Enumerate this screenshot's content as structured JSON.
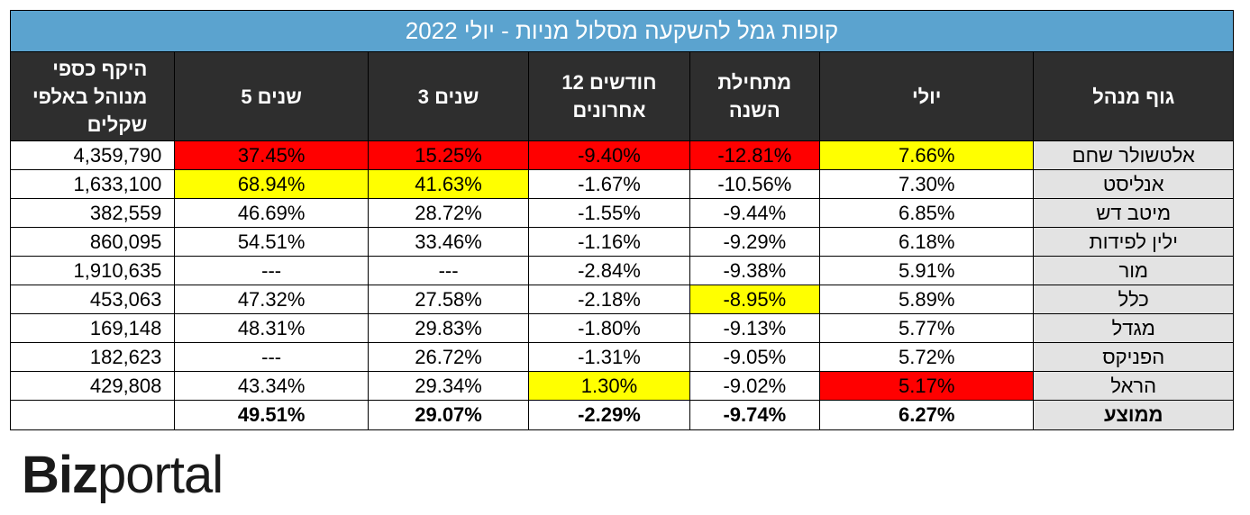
{
  "title": "קופות גמל להשקעה מסלול מניות - יולי 2022",
  "headers": {
    "manager": "גוף מנהל",
    "july": "יולי",
    "ytd": "מתחילת השנה",
    "m12": "12 חודשים אחרונים",
    "y3": "3 שנים",
    "y5": "5 שנים",
    "volume": "היקף כספי מנוהל באלפי שקלים"
  },
  "rows": [
    {
      "manager": "אלטשולר שחם",
      "july": "7.66%",
      "ytd": "-12.81%",
      "m12": "-9.40%",
      "y3": "15.25%",
      "y5": "37.45%",
      "volume": "4,359,790"
    },
    {
      "manager": "אנליסט",
      "july": "7.30%",
      "ytd": "-10.56%",
      "m12": "-1.67%",
      "y3": "41.63%",
      "y5": "68.94%",
      "volume": "1,633,100"
    },
    {
      "manager": "מיטב דש",
      "july": "6.85%",
      "ytd": "-9.44%",
      "m12": "-1.55%",
      "y3": "28.72%",
      "y5": "46.69%",
      "volume": "382,559"
    },
    {
      "manager": "ילין לפידות",
      "july": "6.18%",
      "ytd": "-9.29%",
      "m12": "-1.16%",
      "y3": "33.46%",
      "y5": "54.51%",
      "volume": "860,095"
    },
    {
      "manager": "מור",
      "july": "5.91%",
      "ytd": "-9.38%",
      "m12": "-2.84%",
      "y3": "---",
      "y5": "---",
      "volume": "1,910,635"
    },
    {
      "manager": "כלל",
      "july": "5.89%",
      "ytd": "-8.95%",
      "m12": "-2.18%",
      "y3": "27.58%",
      "y5": "47.32%",
      "volume": "453,063"
    },
    {
      "manager": "מגדל",
      "july": "5.77%",
      "ytd": "-9.13%",
      "m12": "-1.80%",
      "y3": "29.83%",
      "y5": "48.31%",
      "volume": "169,148"
    },
    {
      "manager": "הפניקס",
      "july": "5.72%",
      "ytd": "-9.05%",
      "m12": "-1.31%",
      "y3": "26.72%",
      "y5": "---",
      "volume": "182,623"
    },
    {
      "manager": "הראל",
      "july": "5.17%",
      "ytd": "-9.02%",
      "m12": "1.30%",
      "y3": "29.34%",
      "y5": "43.34%",
      "volume": "429,808"
    }
  ],
  "average": {
    "manager": "ממוצע",
    "july": "6.27%",
    "ytd": "-9.74%",
    "m12": "-2.29%",
    "y3": "29.07%",
    "y5": "49.51%",
    "volume": ""
  },
  "highlight_colors": {
    "best": "#ffff00",
    "worst": "#ff0000"
  },
  "logo": {
    "part1": "Biz",
    "part2": "portal"
  }
}
